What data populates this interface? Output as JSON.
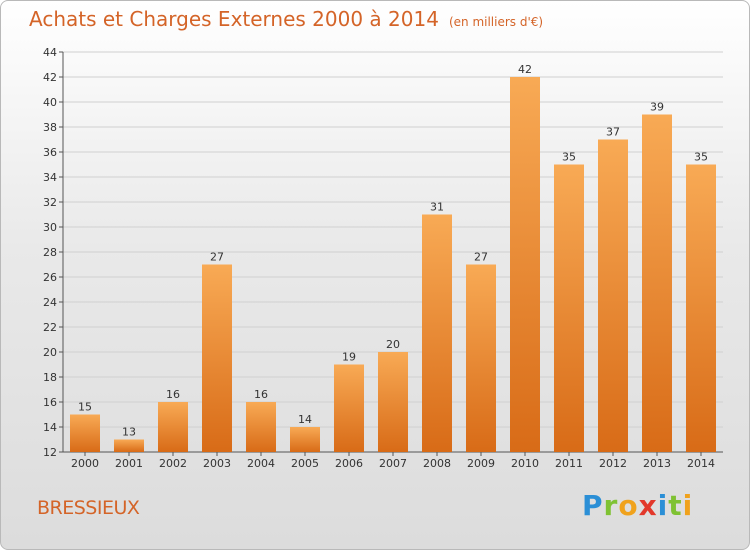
{
  "header": {
    "title": "Achats et Charges Externes 2000 à 2014",
    "unit": "(en milliers d'€)"
  },
  "footer": {
    "commune": "BRESSIEUX",
    "logo_text": "Proxiti"
  },
  "chart_data": {
    "type": "bar",
    "title": "Achats et Charges Externes 2000 à 2014",
    "subtitle": "(en milliers d'€)",
    "xlabel": "",
    "ylabel": "",
    "categories": [
      "2000",
      "2001",
      "2002",
      "2003",
      "2004",
      "2005",
      "2006",
      "2007",
      "2008",
      "2009",
      "2010",
      "2011",
      "2012",
      "2013",
      "2014"
    ],
    "values": [
      15,
      13,
      16,
      27,
      16,
      14,
      19,
      20,
      31,
      27,
      42,
      35,
      37,
      39,
      35
    ],
    "ylim": [
      12,
      44
    ],
    "yticks": [
      12,
      14,
      16,
      18,
      20,
      22,
      24,
      26,
      28,
      30,
      32,
      34,
      36,
      38,
      40,
      42,
      44
    ],
    "grid": true,
    "legend": "none",
    "colors": {
      "bar_light": "#f8aa55",
      "bar_dark": "#d86b17",
      "title": "#d46428",
      "grid": "#d0d0d0"
    }
  }
}
